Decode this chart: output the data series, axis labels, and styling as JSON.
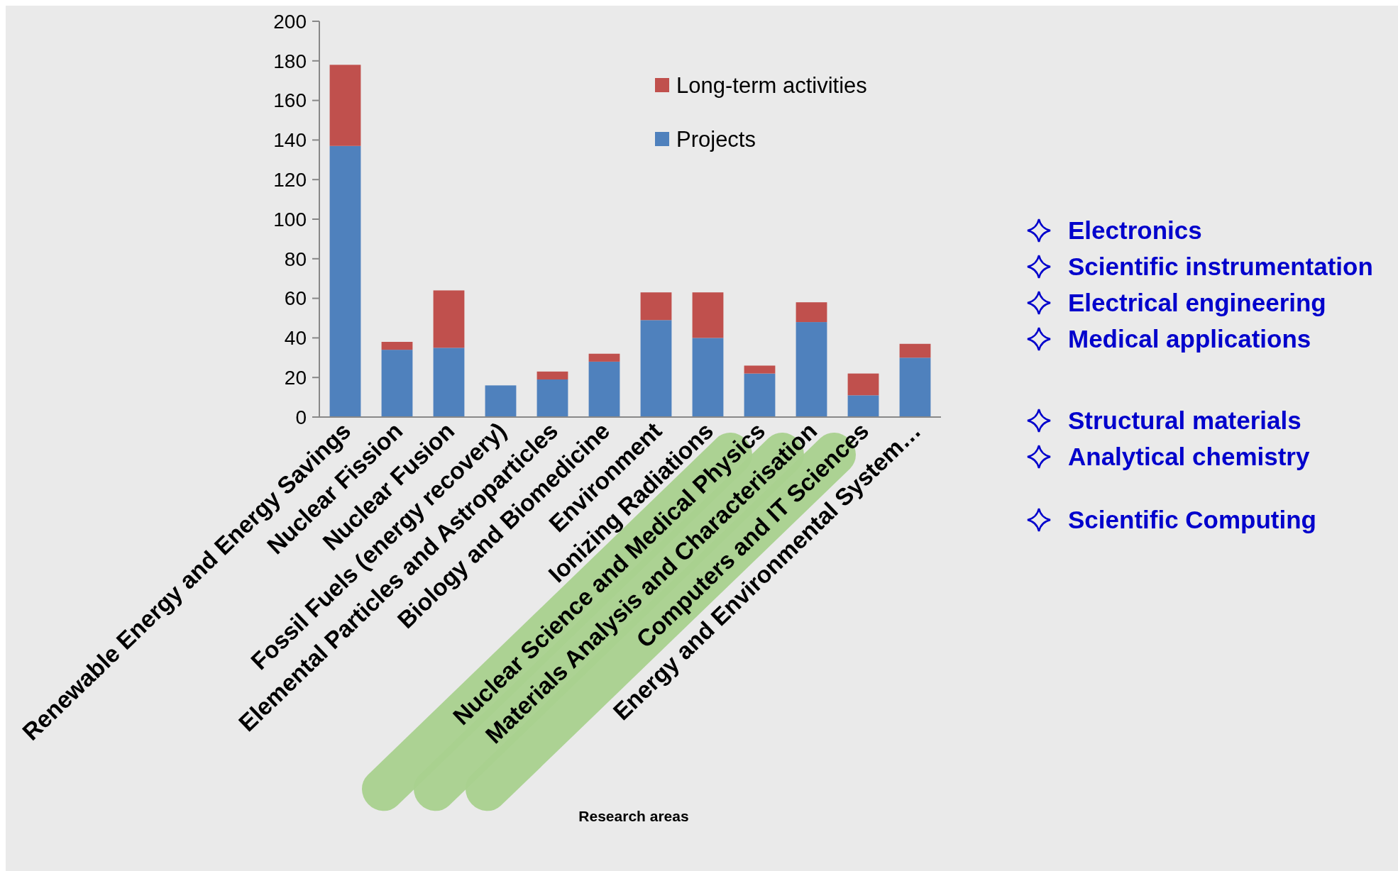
{
  "chart_data": {
    "type": "bar",
    "stacked": true,
    "xlabel": "Research areas",
    "categories": [
      "Renewable Energy and Energy Savings",
      "Nuclear Fission",
      "Nuclear Fusion",
      "Fossil Fuels (energy recovery)",
      "Elemental Particles and Astroparticles",
      "Biology and Biomedicine",
      "Environment",
      "Ionizing Radiations",
      "Nuclear Science and Medical Physics",
      "Materials Analysis and Characterisation",
      "Computers and IT Sciences",
      "Energy and Environmental System…"
    ],
    "series": [
      {
        "name": "Projects",
        "color": "#4f81bd",
        "values": [
          137,
          34,
          35,
          16,
          19,
          28,
          49,
          40,
          22,
          48,
          11,
          30
        ]
      },
      {
        "name": "Long-term activities",
        "color": "#c0504d",
        "values": [
          41,
          4,
          29,
          0,
          4,
          4,
          14,
          23,
          4,
          10,
          11,
          7
        ]
      }
    ],
    "ylim": [
      0,
      200
    ],
    "yticks": [
      0,
      20,
      40,
      60,
      80,
      100,
      120,
      140,
      160,
      180,
      200
    ],
    "grid": false,
    "legend": "top right",
    "annotations": [
      "Electronics",
      "Scientific instrumentation",
      "Electrical engineering",
      "Medical applications",
      "Structural materials",
      "Analytical chemistry",
      "Scientific Computing"
    ]
  }
}
